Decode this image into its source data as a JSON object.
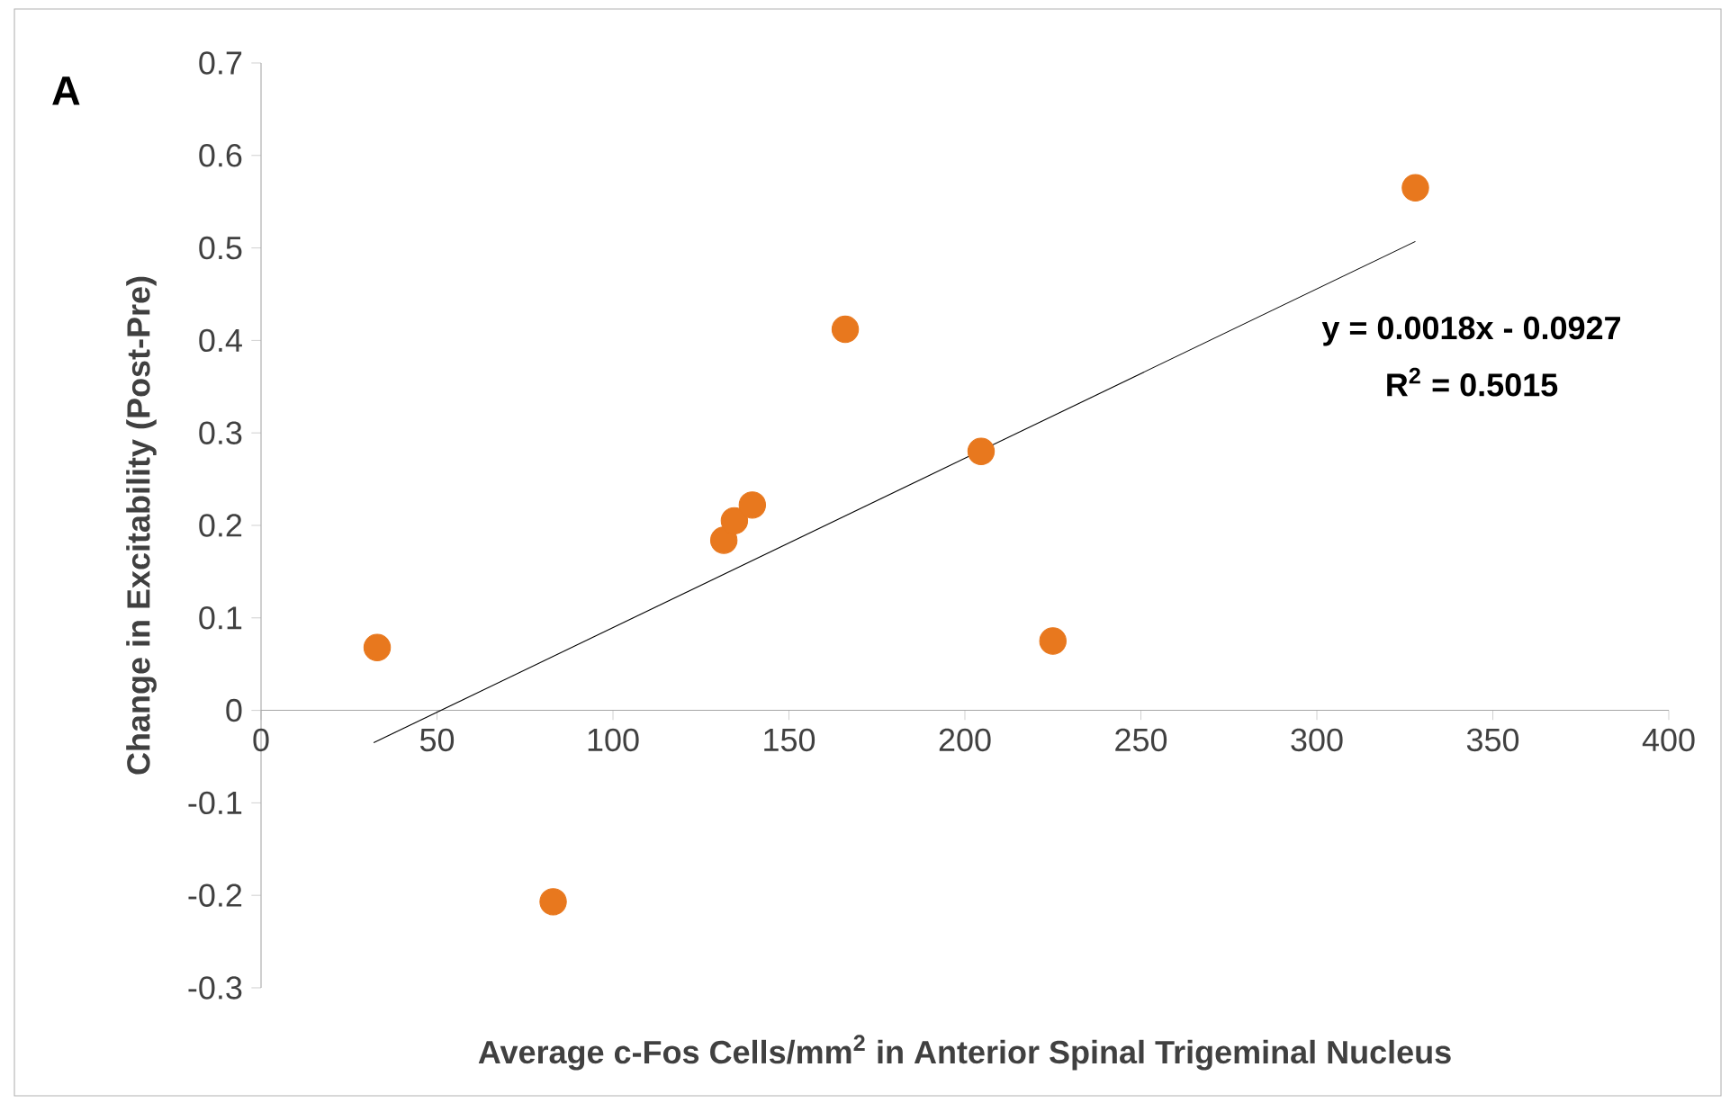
{
  "chart_data": {
    "type": "scatter",
    "xlabel": "Average c-Fos Cells/mm$^{2}$ in Anterior Spinal Trigeminal Nucleus",
    "ylabel": "Change in Excitability (Post-Pre)",
    "xlim": [
      0,
      400
    ],
    "ylim": [
      -0.3,
      0.7
    ],
    "xticks": [
      0,
      50,
      100,
      150,
      200,
      250,
      300,
      350,
      400
    ],
    "yticks": [
      -0.3,
      -0.2,
      -0.1,
      0,
      0.1,
      0.2,
      0.3,
      0.4,
      0.5,
      0.6,
      0.7
    ],
    "grid": false,
    "marker": "circle",
    "series": [
      {
        "color": "#e8781e",
        "x": [
          33,
          83,
          131.5,
          134.5,
          139.6,
          166,
          204.6,
          225,
          328
        ],
        "values": [
          0.068,
          -0.207,
          0.184,
          0.205,
          0.222,
          0.412,
          0.28,
          0.075,
          0.565
        ]
      },
      {
        "type": "line",
        "color": "#000000",
        "marker": "none",
        "line_style": "solid",
        "x": [
          32,
          328
        ],
        "values": [
          -0.035,
          0.507
        ]
      }
    ],
    "annotations": [
      "A",
      "y = 0.0018x - 0.0927",
      "R$^{2}$ = 0.5015"
    ]
  }
}
